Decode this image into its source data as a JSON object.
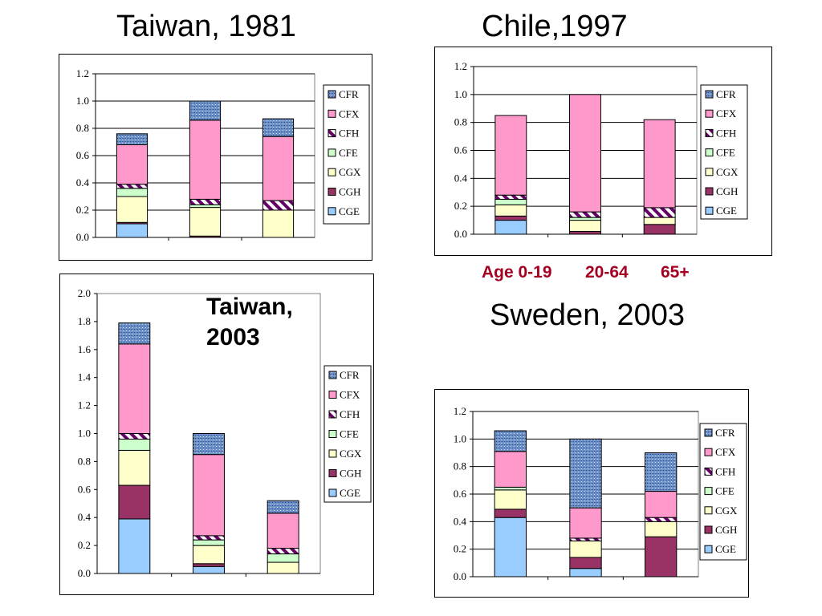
{
  "headings": {
    "taiwan_1981": "Taiwan, 1981",
    "chile_1997": "Chile,1997",
    "sweden_2003": "Sweden, 2003",
    "taiwan_2003_line1": "Taiwan,",
    "taiwan_2003_line2": "2003"
  },
  "age_labels": [
    "Age 0-19",
    "20-64",
    "65+"
  ],
  "colors": {
    "CFR": "#6f93c8",
    "CFX": "#ff99cc",
    "CFH": "#ffffff",
    "CFH_stripe": "#660066",
    "CFE": "#ccffcc",
    "CGX": "#ffffcc",
    "CGH": "#993366",
    "CGE": "#99ccff"
  },
  "chart_data": [
    {
      "id": "taiwan_1981",
      "type": "bar",
      "stacked": true,
      "categories": [
        "",
        "",
        ""
      ],
      "ylim": [
        0,
        1.2
      ],
      "yticks": [
        "0.0",
        "0.2",
        "0.4",
        "0.6",
        "0.8",
        "1.0",
        "1.2"
      ],
      "grid": true,
      "legend_position": "right",
      "series": [
        {
          "name": "CGE",
          "values": [
            0.1,
            0.0,
            0.0
          ]
        },
        {
          "name": "CGH",
          "values": [
            0.01,
            0.01,
            0.0
          ]
        },
        {
          "name": "CGX",
          "values": [
            0.19,
            0.21,
            0.2
          ]
        },
        {
          "name": "CFE",
          "values": [
            0.06,
            0.02,
            0.0
          ]
        },
        {
          "name": "CFH",
          "values": [
            0.03,
            0.04,
            0.07
          ]
        },
        {
          "name": "CFX",
          "values": [
            0.29,
            0.58,
            0.47
          ]
        },
        {
          "name": "CFR",
          "values": [
            0.08,
            0.14,
            0.13
          ]
        }
      ]
    },
    {
      "id": "chile_1997",
      "type": "bar",
      "stacked": true,
      "categories": [
        "Age 0-19",
        "20-64",
        "65+"
      ],
      "ylim": [
        0,
        1.2
      ],
      "yticks": [
        "0.0",
        "0.2",
        "0.4",
        "0.6",
        "0.8",
        "1.0",
        "1.2"
      ],
      "grid": true,
      "legend_position": "right",
      "series": [
        {
          "name": "CGE",
          "values": [
            0.1,
            0.0,
            0.0
          ]
        },
        {
          "name": "CGH",
          "values": [
            0.03,
            0.02,
            0.07
          ]
        },
        {
          "name": "CGX",
          "values": [
            0.08,
            0.08,
            0.05
          ]
        },
        {
          "name": "CFE",
          "values": [
            0.04,
            0.02,
            0.0
          ]
        },
        {
          "name": "CFH",
          "values": [
            0.03,
            0.04,
            0.07
          ]
        },
        {
          "name": "CFX",
          "values": [
            0.57,
            0.84,
            0.63
          ]
        },
        {
          "name": "CFR",
          "values": [
            0.0,
            0.0,
            0.0
          ]
        }
      ]
    },
    {
      "id": "taiwan_2003",
      "type": "bar",
      "stacked": true,
      "categories": [
        "",
        "",
        ""
      ],
      "ylim": [
        0,
        2.0
      ],
      "yticks": [
        "0.0",
        "0.2",
        "0.4",
        "0.6",
        "0.8",
        "1.0",
        "1.2",
        "1.4",
        "1.6",
        "1.8",
        "2.0"
      ],
      "grid": false,
      "legend_position": "right",
      "series": [
        {
          "name": "CGE",
          "values": [
            0.39,
            0.05,
            0.0
          ]
        },
        {
          "name": "CGH",
          "values": [
            0.24,
            0.02,
            0.0
          ]
        },
        {
          "name": "CGX",
          "values": [
            0.25,
            0.13,
            0.08
          ]
        },
        {
          "name": "CFE",
          "values": [
            0.08,
            0.04,
            0.06
          ]
        },
        {
          "name": "CFH",
          "values": [
            0.04,
            0.03,
            0.04
          ]
        },
        {
          "name": "CFX",
          "values": [
            0.64,
            0.58,
            0.25
          ]
        },
        {
          "name": "CFR",
          "values": [
            0.15,
            0.15,
            0.09
          ]
        }
      ]
    },
    {
      "id": "sweden_2003",
      "type": "bar",
      "stacked": true,
      "categories": [
        "",
        "",
        ""
      ],
      "ylim": [
        0,
        1.2
      ],
      "yticks": [
        "0.0",
        "0.2",
        "0.4",
        "0.6",
        "0.8",
        "1.0",
        "1.2"
      ],
      "grid": true,
      "legend_position": "right",
      "series": [
        {
          "name": "CGE",
          "values": [
            0.43,
            0.06,
            0.0
          ]
        },
        {
          "name": "CGH",
          "values": [
            0.06,
            0.08,
            0.29
          ]
        },
        {
          "name": "CGX",
          "values": [
            0.14,
            0.12,
            0.11
          ]
        },
        {
          "name": "CFE",
          "values": [
            0.02,
            0.0,
            0.0
          ]
        },
        {
          "name": "CFH",
          "values": [
            0.0,
            0.02,
            0.03
          ]
        },
        {
          "name": "CFX",
          "values": [
            0.26,
            0.22,
            0.19
          ]
        },
        {
          "name": "CFR",
          "values": [
            0.15,
            0.5,
            0.28
          ]
        }
      ]
    }
  ]
}
